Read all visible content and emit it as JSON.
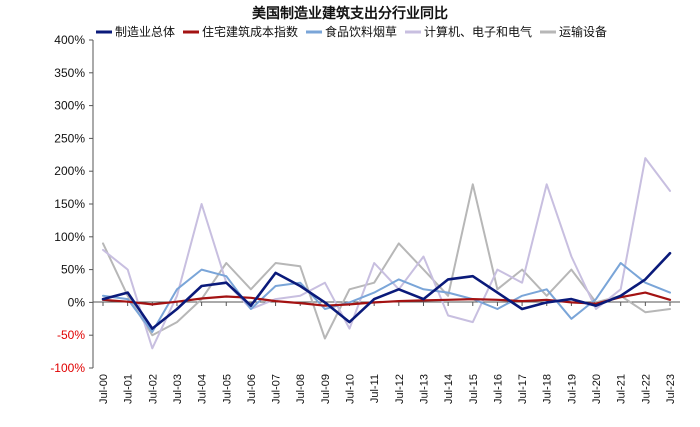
{
  "chart_data": {
    "type": "line",
    "title": "美国制造业建筑支出分行业同比",
    "xlabel": "",
    "ylabel": "",
    "ylim": [
      -1.0,
      4.0
    ],
    "y_ticks": [
      -1.0,
      -0.5,
      0,
      0.5,
      1.0,
      1.5,
      2.0,
      2.5,
      3.0,
      3.5,
      4.0
    ],
    "y_tick_labels": [
      "-100%",
      "-50%",
      "0%",
      "50%",
      "100%",
      "150%",
      "200%",
      "250%",
      "300%",
      "350%",
      "400%"
    ],
    "negative_tick_color": "#e00000",
    "x": [
      "Jul-00",
      "Jul-01",
      "Jul-02",
      "Jul-03",
      "Jul-04",
      "Jul-05",
      "Jul-06",
      "Jul-07",
      "Jul-08",
      "Jul-09",
      "Jul-10",
      "Jul-11",
      "Jul-12",
      "Jul-13",
      "Jul-14",
      "Jul-15",
      "Jul-16",
      "Jul-17",
      "Jul-18",
      "Jul-19",
      "Jul-20",
      "Jul-21",
      "Jul-22",
      "Jul-23"
    ],
    "legend_position": "top",
    "grid": false,
    "series": [
      {
        "name": "制造业总体",
        "color": "#0a1a7a",
        "width": 2.6,
        "values": [
          0.05,
          0.15,
          -0.4,
          -0.1,
          0.25,
          0.3,
          -0.05,
          0.45,
          0.25,
          0.0,
          -0.3,
          0.05,
          0.2,
          0.05,
          0.35,
          0.4,
          0.15,
          -0.1,
          0.0,
          0.05,
          -0.05,
          0.1,
          0.35,
          0.75
        ]
      },
      {
        "name": "住宅建筑成本指数",
        "color": "#a31212",
        "width": 2.2,
        "values": [
          0.04,
          0.01,
          -0.03,
          0.01,
          0.06,
          0.09,
          0.07,
          0.02,
          -0.01,
          -0.05,
          -0.03,
          0.0,
          0.02,
          0.03,
          0.04,
          0.05,
          0.04,
          0.02,
          0.04,
          0.0,
          -0.02,
          0.08,
          0.15,
          0.04
        ]
      },
      {
        "name": "食品饮料烟草",
        "color": "#7aa5d8",
        "width": 2.0,
        "values": [
          0.1,
          0.05,
          -0.45,
          0.2,
          0.5,
          0.4,
          -0.1,
          0.25,
          0.3,
          -0.1,
          0.0,
          0.15,
          0.35,
          0.2,
          0.15,
          0.05,
          -0.1,
          0.1,
          0.2,
          -0.25,
          0.05,
          0.6,
          0.3,
          0.15
        ]
      },
      {
        "name": "计算机、电子和电气",
        "color": "#c8bfe0",
        "width": 2.0,
        "values": [
          0.8,
          0.5,
          -0.7,
          0.1,
          1.5,
          0.3,
          -0.1,
          0.05,
          0.1,
          0.3,
          -0.4,
          0.6,
          0.2,
          0.7,
          -0.2,
          -0.3,
          0.5,
          0.3,
          1.8,
          0.7,
          -0.1,
          0.2,
          2.2,
          1.7
        ]
      },
      {
        "name": "运输设备",
        "color": "#b7b7b7",
        "width": 2.0,
        "values": [
          0.9,
          0.1,
          -0.5,
          -0.3,
          0.05,
          0.6,
          0.2,
          0.6,
          0.55,
          -0.55,
          0.2,
          0.3,
          0.9,
          0.5,
          0.1,
          1.8,
          0.2,
          0.5,
          0.1,
          0.5,
          0.0,
          0.1,
          -0.15,
          -0.1
        ]
      }
    ]
  }
}
